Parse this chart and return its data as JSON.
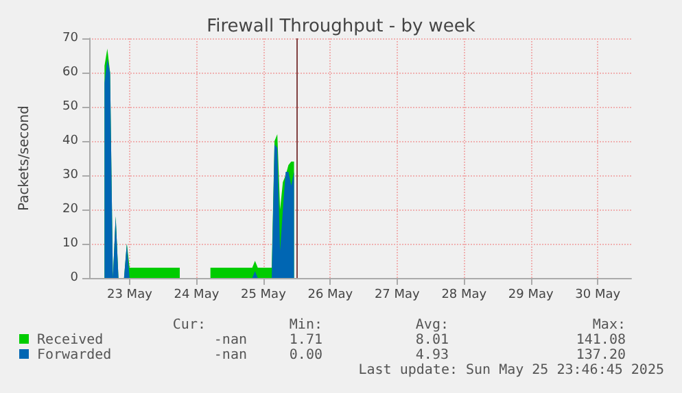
{
  "chart_data": {
    "type": "area",
    "title": "Firewall Throughput - by week",
    "ylabel": "Packets/second",
    "x": [
      "2025-05-23T03:00",
      "2025-05-23T04:00",
      "2025-05-23T05:00",
      "2025-05-23T06:00",
      "2025-05-23T07:00",
      "2025-05-23T08:00",
      "2025-05-23T09:00",
      "2025-05-23T10:00",
      "2025-05-23T11:00",
      "2025-05-23T12:00",
      "2025-05-23T15:00",
      "2025-05-23T18:00",
      "2025-05-23T21:00",
      "2025-05-24T00:00",
      "2025-05-24T03:00",
      "2025-05-24T06:00",
      "2025-05-24T07:00",
      "2025-05-24T17:00",
      "2025-05-24T20:00",
      "2025-05-24T23:00",
      "2025-05-25T02:00",
      "2025-05-25T05:00",
      "2025-05-25T08:00",
      "2025-05-25T09:00",
      "2025-05-25T10:00",
      "2025-05-25T13:00",
      "2025-05-25T15:00",
      "2025-05-25T16:00",
      "2025-05-25T17:00",
      "2025-05-25T18:00",
      "2025-05-25T19:00",
      "2025-05-25T20:00",
      "2025-05-25T21:00",
      "2025-05-25T22:00",
      "2025-05-25T23:00"
    ],
    "series": [
      {
        "name": "Received",
        "color": "#00cc00",
        "values": [
          62,
          67,
          60,
          0,
          18,
          0,
          0,
          0,
          10,
          3,
          3,
          3,
          3,
          3,
          3,
          3,
          null,
          3,
          3,
          3,
          3,
          3,
          3,
          5,
          3,
          3,
          3,
          40,
          42,
          20,
          28,
          30,
          33,
          34,
          34
        ]
      },
      {
        "name": "Forwarded",
        "color": "#0066b3",
        "values": [
          57,
          64,
          60,
          0,
          18,
          0,
          0,
          0,
          10,
          0,
          0,
          0,
          0,
          0,
          0,
          0,
          null,
          0,
          0,
          0,
          0,
          0,
          0,
          2,
          0,
          0,
          0,
          39,
          38,
          8,
          20,
          31,
          31,
          27,
          31
        ]
      }
    ],
    "xlim": [
      "2025-05-22T21:30",
      "2025-05-31T00:00"
    ],
    "xticks": [
      {
        "value": "2025-05-23T12:00",
        "label": "23 May"
      },
      {
        "value": "2025-05-24T12:00",
        "label": "24 May"
      },
      {
        "value": "2025-05-25T12:00",
        "label": "25 May"
      },
      {
        "value": "2025-05-26T12:00",
        "label": "26 May"
      },
      {
        "value": "2025-05-27T12:00",
        "label": "27 May"
      },
      {
        "value": "2025-05-28T12:00",
        "label": "28 May"
      },
      {
        "value": "2025-05-29T12:00",
        "label": "29 May"
      },
      {
        "value": "2025-05-30T12:00",
        "label": "30 May"
      }
    ],
    "ylim": [
      0,
      70
    ],
    "yticks": [
      0,
      10,
      20,
      30,
      40,
      50,
      60,
      70
    ],
    "grid": true,
    "legend": "bottom",
    "ref_lines": [
      {
        "axis": "x",
        "value": "2025-05-26T00:00",
        "color": "#804040"
      }
    ],
    "annotations": [
      "Cur:",
      "Min:",
      "Avg:",
      "Max:",
      "-nan",
      "1.71",
      "8.01",
      "141.08",
      "-nan",
      "0.00",
      "4.93",
      "137.20",
      "Last update: Sun May 25 23:46:45 2025"
    ]
  }
}
